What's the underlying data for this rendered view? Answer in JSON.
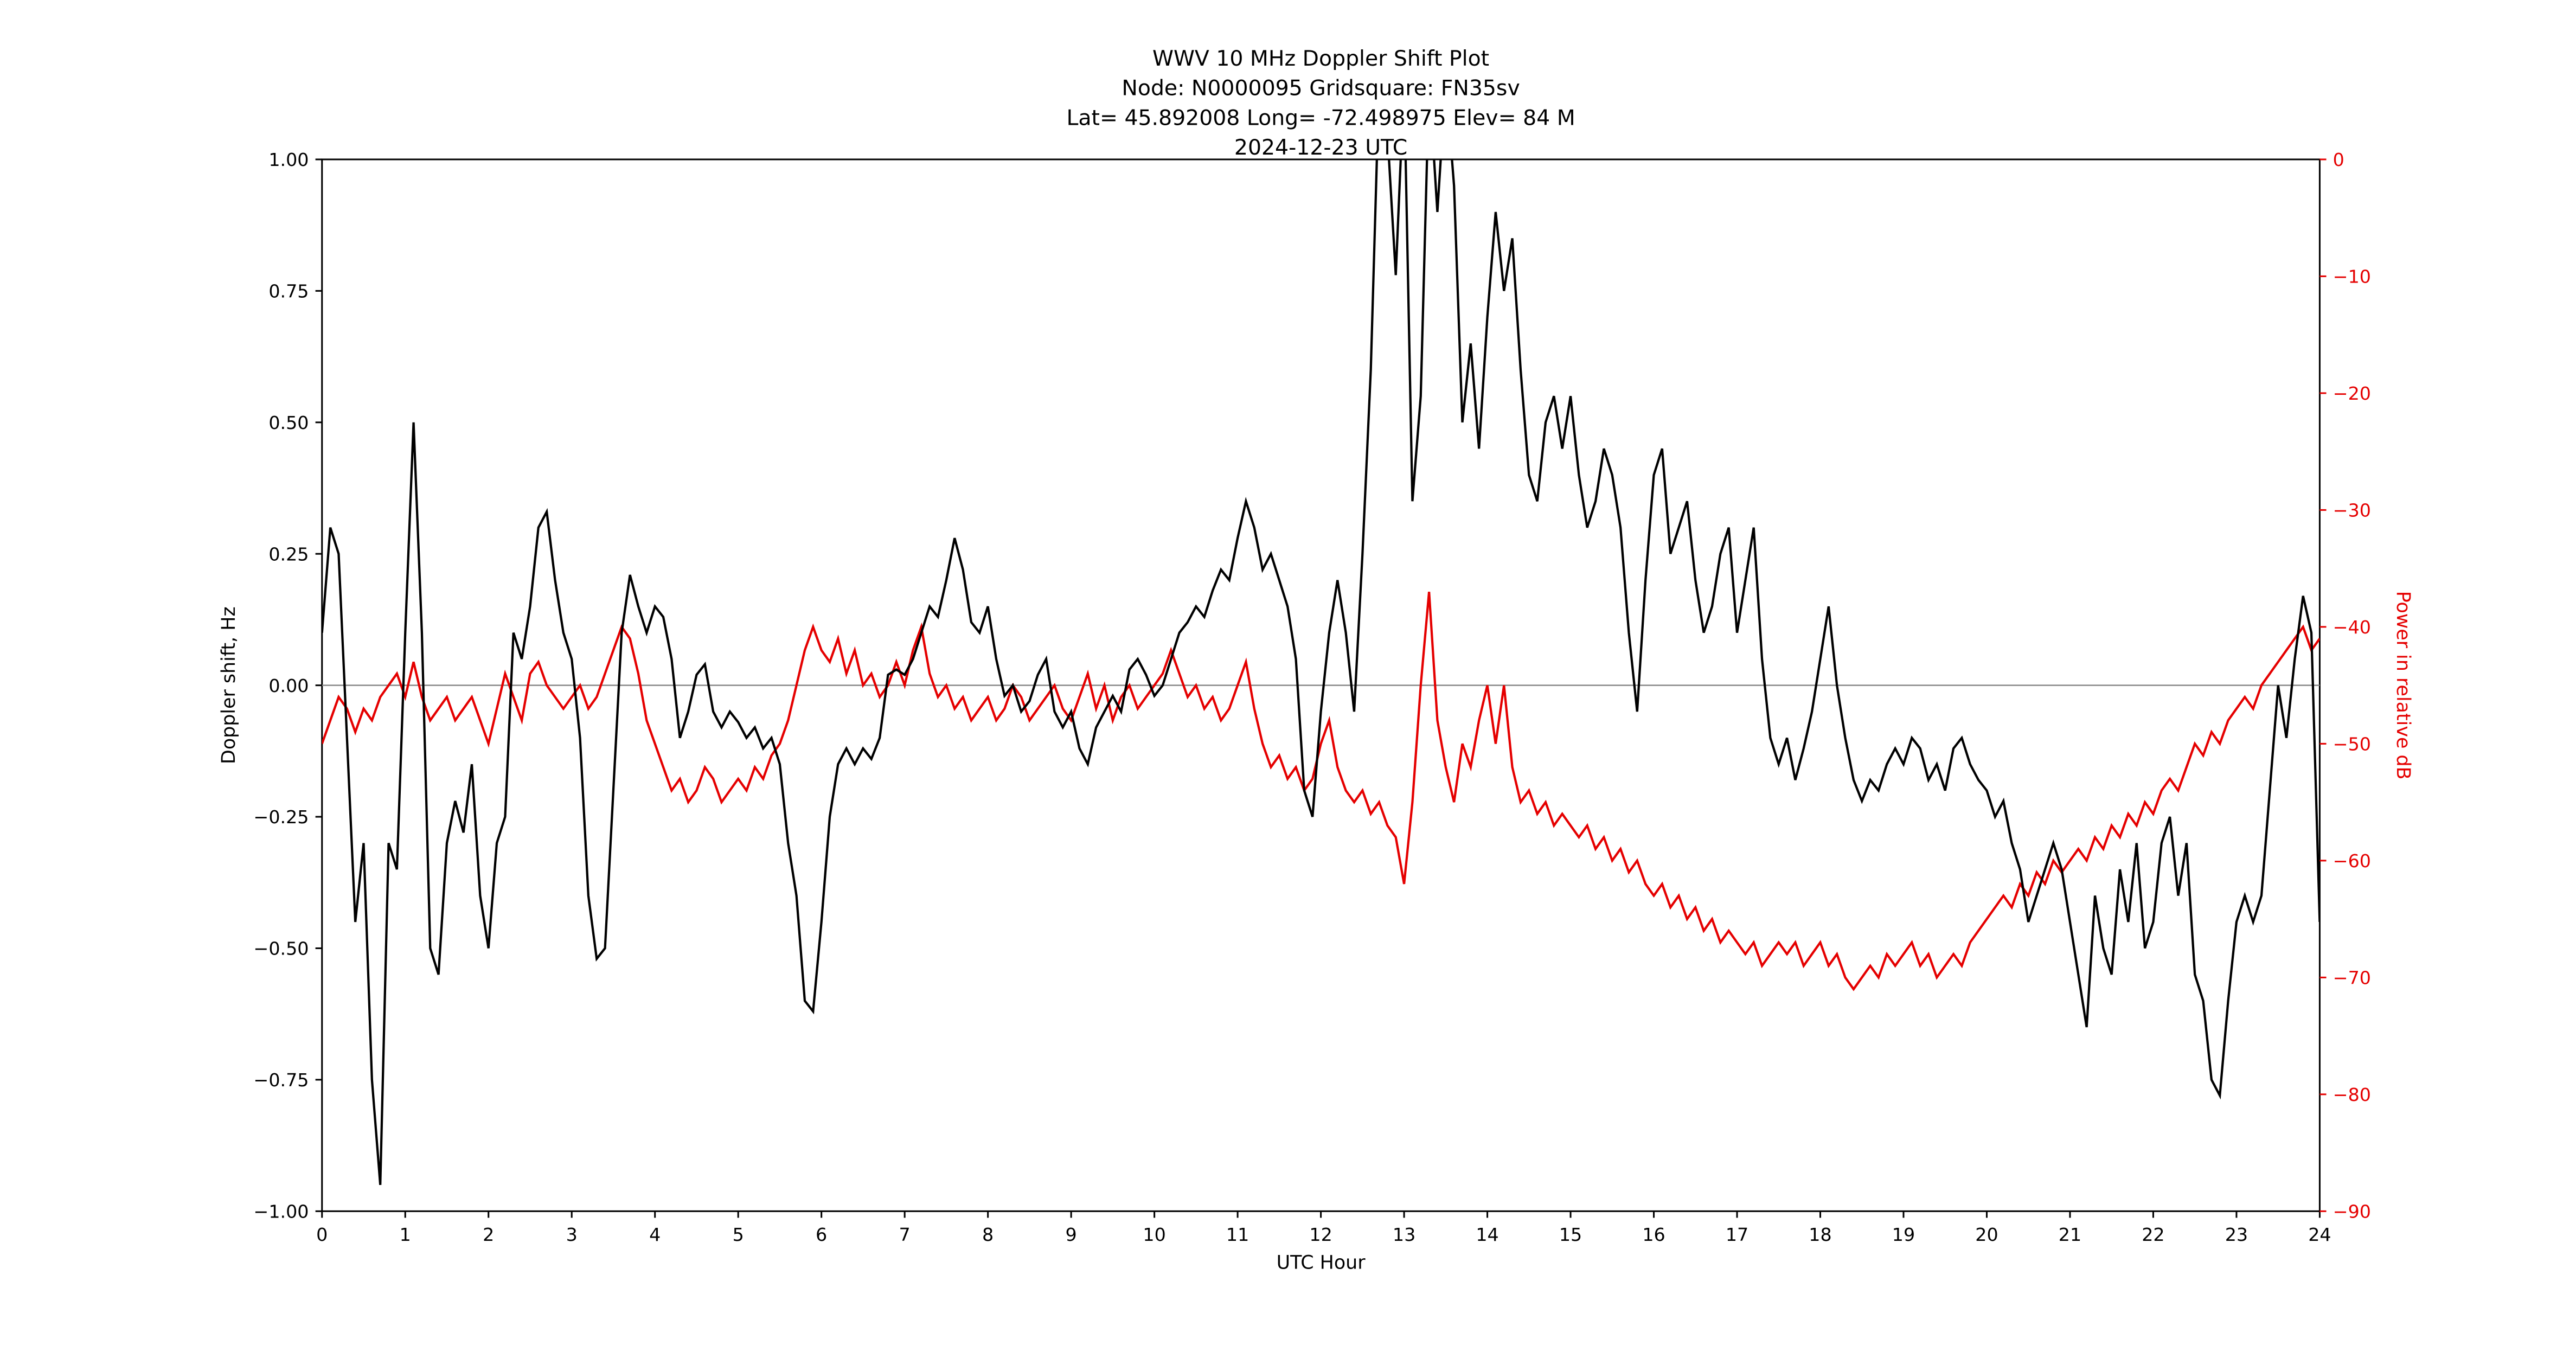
{
  "title": {
    "line1": "WWV 10 MHz Doppler Shift Plot",
    "line2": "Node:  N0000095      Gridsquare:  FN35sv",
    "line3": "Lat=  45.892008    Long= -72.498975    Elev= 84 M",
    "line4": "2024-12-23  UTC"
  },
  "axes": {
    "x_label": "UTC Hour",
    "y_left_label": "Doppler shift, Hz",
    "y_right_label": "Power in relative dB",
    "x_ticks": [
      "0",
      "1",
      "2",
      "3",
      "4",
      "5",
      "6",
      "7",
      "8",
      "9",
      "10",
      "11",
      "12",
      "13",
      "14",
      "15",
      "16",
      "17",
      "18",
      "19",
      "20",
      "21",
      "22",
      "23",
      "24"
    ],
    "y_left_ticks": [
      "1.00",
      "0.75",
      "0.50",
      "0.25",
      "0.00",
      "−0.25",
      "−0.50",
      "−0.75",
      "−1.00"
    ],
    "y_right_ticks": [
      "0",
      "−10",
      "−20",
      "−30",
      "−40",
      "−50",
      "−60",
      "−70",
      "−80",
      "−90"
    ]
  },
  "colors": {
    "doppler_line": "#000000",
    "power_line": "#e50000",
    "zero_line": "#888888",
    "spine": "#000000",
    "background": "#ffffff"
  },
  "chart_data": {
    "type": "line",
    "x_axis": {
      "label": "UTC Hour",
      "min": 0,
      "max": 24,
      "tick_step": 1
    },
    "y_left_axis": {
      "label": "Doppler shift, Hz",
      "min": -1.0,
      "max": 1.0,
      "tick_step": 0.25
    },
    "y_right_axis": {
      "label": "Power in relative dB",
      "min": -90,
      "max": 0,
      "tick_step": 10
    },
    "zero_reference_line_y_left": 0.0,
    "x_start": 0.0,
    "x_step": 0.1,
    "series": [
      {
        "name": "Doppler shift, Hz",
        "axis": "left",
        "color": "#000000",
        "values": [
          0.1,
          0.3,
          0.25,
          -0.1,
          -0.45,
          -0.3,
          -0.75,
          -0.95,
          -0.3,
          -0.35,
          0.1,
          0.5,
          0.1,
          -0.5,
          -0.55,
          -0.3,
          -0.22,
          -0.28,
          -0.15,
          -0.4,
          -0.5,
          -0.3,
          -0.25,
          0.1,
          0.05,
          0.15,
          0.3,
          0.33,
          0.2,
          0.1,
          0.05,
          -0.1,
          -0.4,
          -0.52,
          -0.5,
          -0.2,
          0.1,
          0.21,
          0.15,
          0.1,
          0.15,
          0.13,
          0.05,
          -0.1,
          -0.05,
          0.02,
          0.04,
          -0.05,
          -0.08,
          -0.05,
          -0.07,
          -0.1,
          -0.08,
          -0.12,
          -0.1,
          -0.15,
          -0.3,
          -0.4,
          -0.6,
          -0.62,
          -0.45,
          -0.25,
          -0.15,
          -0.12,
          -0.15,
          -0.12,
          -0.14,
          -0.1,
          0.02,
          0.03,
          0.02,
          0.05,
          0.1,
          0.15,
          0.13,
          0.2,
          0.28,
          0.22,
          0.12,
          0.1,
          0.15,
          0.05,
          -0.02,
          0.0,
          -0.05,
          -0.03,
          0.02,
          0.05,
          -0.05,
          -0.08,
          -0.05,
          -0.12,
          -0.15,
          -0.08,
          -0.05,
          -0.02,
          -0.05,
          0.03,
          0.05,
          0.02,
          -0.02,
          0.0,
          0.05,
          0.1,
          0.12,
          0.15,
          0.13,
          0.18,
          0.22,
          0.2,
          0.28,
          0.35,
          0.3,
          0.22,
          0.25,
          0.2,
          0.15,
          0.05,
          -0.2,
          -0.25,
          -0.05,
          0.1,
          0.2,
          0.1,
          -0.05,
          0.25,
          0.6,
          1.15,
          1.05,
          0.78,
          1.15,
          0.35,
          0.55,
          1.15,
          0.9,
          1.15,
          0.95,
          0.5,
          0.65,
          0.45,
          0.7,
          0.9,
          0.75,
          0.85,
          0.6,
          0.4,
          0.35,
          0.5,
          0.55,
          0.45,
          0.55,
          0.4,
          0.3,
          0.35,
          0.45,
          0.4,
          0.3,
          0.1,
          -0.05,
          0.2,
          0.4,
          0.45,
          0.25,
          0.3,
          0.35,
          0.2,
          0.1,
          0.15,
          0.25,
          0.3,
          0.1,
          0.2,
          0.3,
          0.05,
          -0.1,
          -0.15,
          -0.1,
          -0.18,
          -0.12,
          -0.05,
          0.05,
          0.15,
          0.0,
          -0.1,
          -0.18,
          -0.22,
          -0.18,
          -0.2,
          -0.15,
          -0.12,
          -0.15,
          -0.1,
          -0.12,
          -0.18,
          -0.15,
          -0.2,
          -0.12,
          -0.1,
          -0.15,
          -0.18,
          -0.2,
          -0.25,
          -0.22,
          -0.3,
          -0.35,
          -0.45,
          -0.4,
          -0.35,
          -0.3,
          -0.35,
          -0.45,
          -0.55,
          -0.65,
          -0.4,
          -0.5,
          -0.55,
          -0.35,
          -0.45,
          -0.3,
          -0.5,
          -0.45,
          -0.3,
          -0.25,
          -0.4,
          -0.3,
          -0.55,
          -0.6,
          -0.75,
          -0.78,
          -0.6,
          -0.45,
          -0.4,
          -0.45,
          -0.4,
          -0.2,
          0.0,
          -0.1,
          0.05,
          0.17,
          0.1,
          -0.45
        ]
      },
      {
        "name": "Power in relative dB",
        "axis": "right",
        "color": "#e50000",
        "values": [
          -50,
          -48,
          -46,
          -47,
          -49,
          -47,
          -48,
          -46,
          -45,
          -44,
          -46,
          -43,
          -46,
          -48,
          -47,
          -46,
          -48,
          -47,
          -46,
          -48,
          -50,
          -47,
          -44,
          -46,
          -48,
          -44,
          -43,
          -45,
          -46,
          -47,
          -46,
          -45,
          -47,
          -46,
          -44,
          -42,
          -40,
          -41,
          -44,
          -48,
          -50,
          -52,
          -54,
          -53,
          -55,
          -54,
          -52,
          -53,
          -55,
          -54,
          -53,
          -54,
          -52,
          -53,
          -51,
          -50,
          -48,
          -45,
          -42,
          -40,
          -42,
          -43,
          -41,
          -44,
          -42,
          -45,
          -44,
          -46,
          -45,
          -43,
          -45,
          -42,
          -40,
          -44,
          -46,
          -45,
          -47,
          -46,
          -48,
          -47,
          -46,
          -48,
          -47,
          -45,
          -46,
          -48,
          -47,
          -46,
          -45,
          -47,
          -48,
          -46,
          -44,
          -47,
          -45,
          -48,
          -46,
          -45,
          -47,
          -46,
          -45,
          -44,
          -42,
          -44,
          -46,
          -45,
          -47,
          -46,
          -48,
          -47,
          -45,
          -43,
          -47,
          -50,
          -52,
          -51,
          -53,
          -52,
          -54,
          -53,
          -50,
          -48,
          -52,
          -54,
          -55,
          -54,
          -56,
          -55,
          -57,
          -58,
          -62,
          -55,
          -45,
          -37,
          -48,
          -52,
          -55,
          -50,
          -52,
          -48,
          -45,
          -50,
          -45,
          -52,
          -55,
          -54,
          -56,
          -55,
          -57,
          -56,
          -57,
          -58,
          -57,
          -59,
          -58,
          -60,
          -59,
          -61,
          -60,
          -62,
          -63,
          -62,
          -64,
          -63,
          -65,
          -64,
          -66,
          -65,
          -67,
          -66,
          -67,
          -68,
          -67,
          -69,
          -68,
          -67,
          -68,
          -67,
          -69,
          -68,
          -67,
          -69,
          -68,
          -70,
          -71,
          -70,
          -69,
          -70,
          -68,
          -69,
          -68,
          -67,
          -69,
          -68,
          -70,
          -69,
          -68,
          -69,
          -67,
          -66,
          -65,
          -64,
          -63,
          -64,
          -62,
          -63,
          -61,
          -62,
          -60,
          -61,
          -60,
          -59,
          -60,
          -58,
          -59,
          -57,
          -58,
          -56,
          -57,
          -55,
          -56,
          -54,
          -53,
          -54,
          -52,
          -50,
          -51,
          -49,
          -50,
          -48,
          -47,
          -46,
          -47,
          -45,
          -44,
          -43,
          -42,
          -41,
          -40,
          -42,
          -41
        ]
      }
    ]
  }
}
